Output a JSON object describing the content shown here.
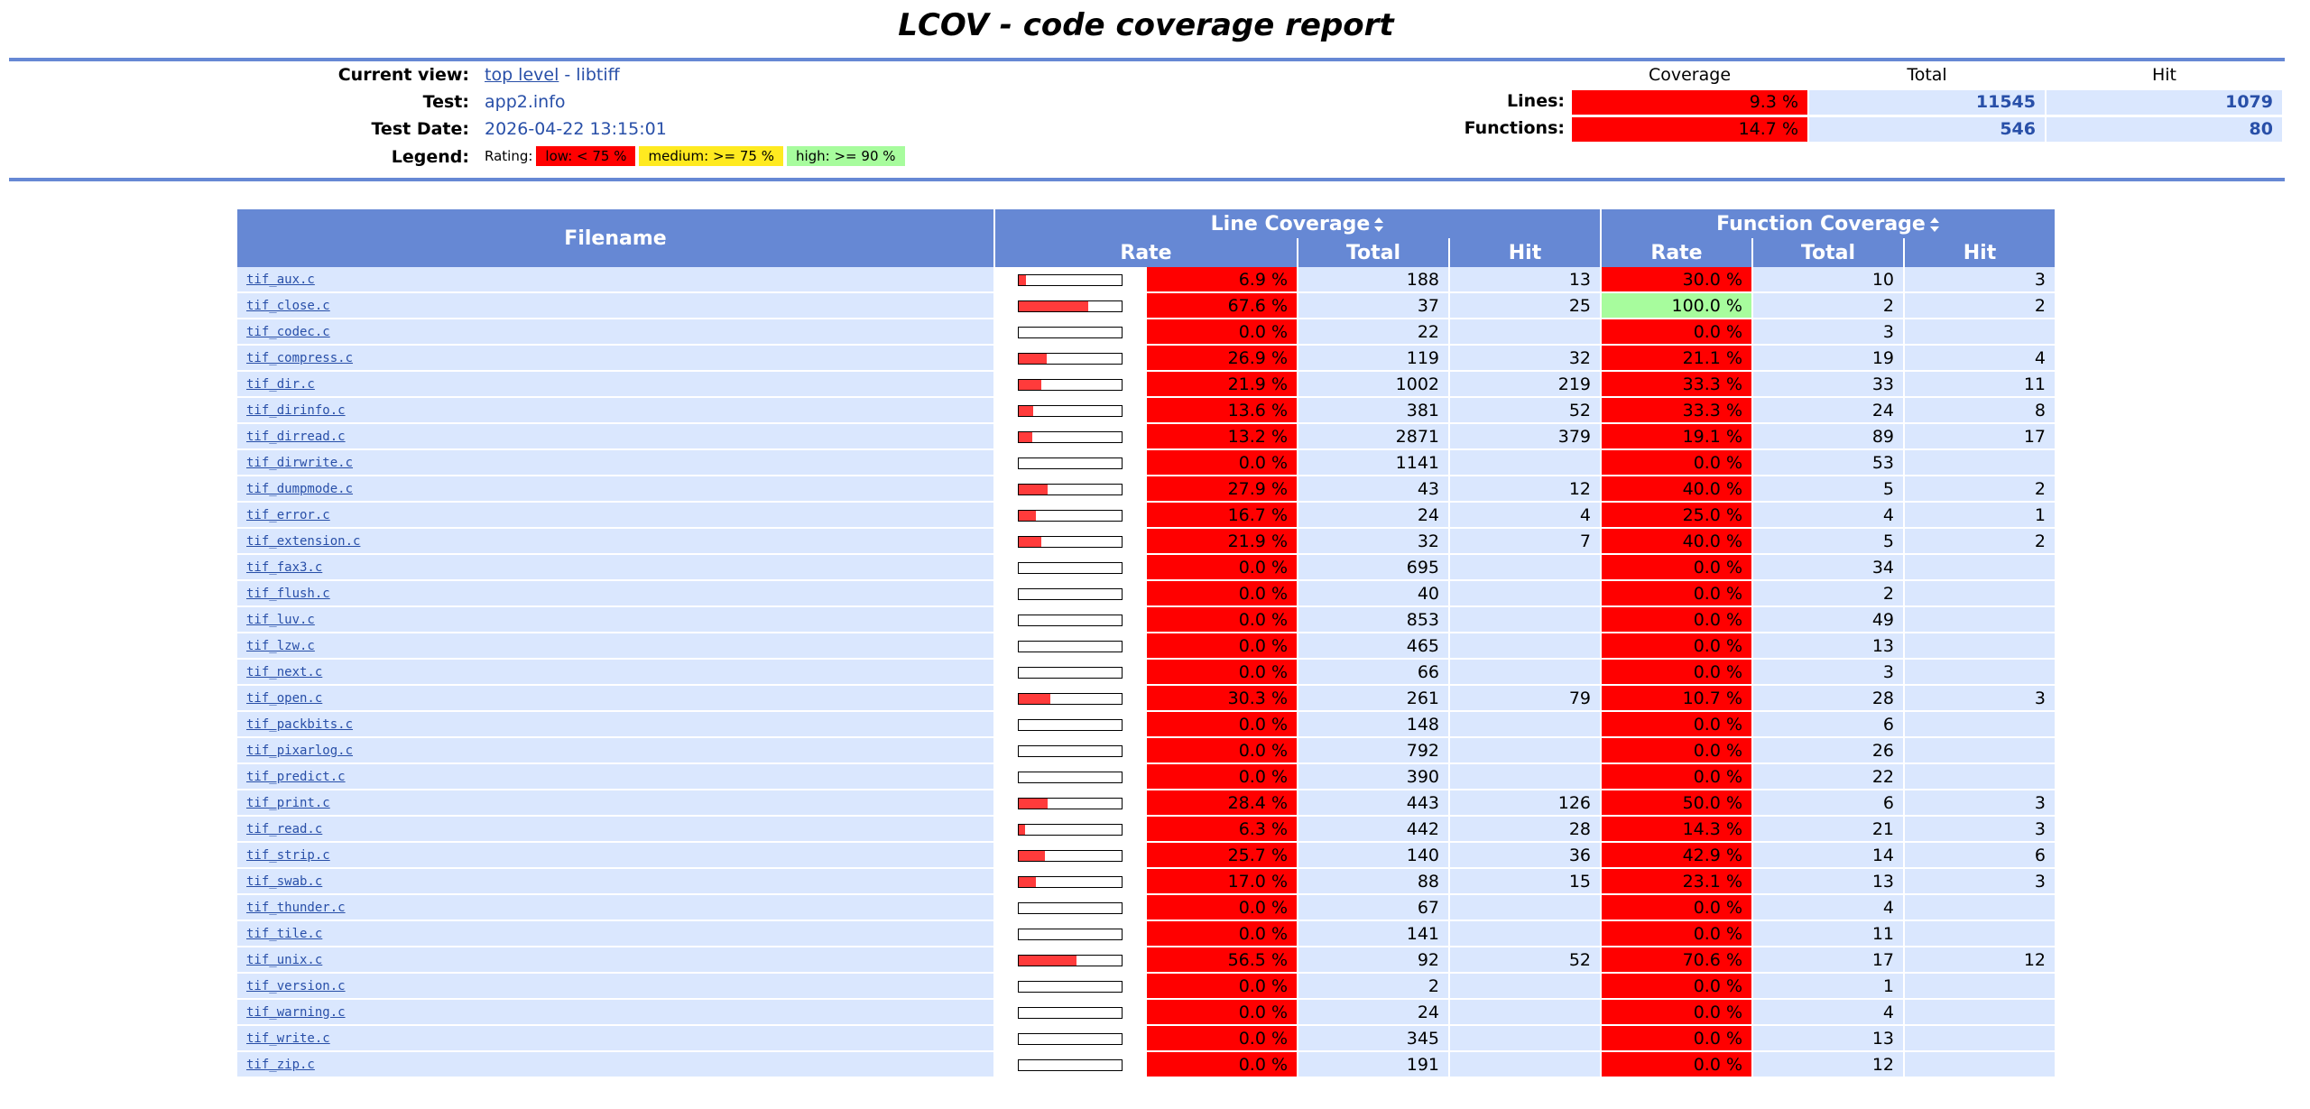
{
  "header": {
    "title": "LCOV - code coverage report",
    "labels": {
      "current_view": "Current view:",
      "test": "Test:",
      "test_date": "Test Date:",
      "legend": "Legend:"
    },
    "current_view": {
      "link": "top level",
      "separator": " - ",
      "name": "libtiff"
    },
    "test": "app2.info",
    "test_date": "2026-04-22 13:15:01",
    "legend": {
      "prefix": "Rating:",
      "items": [
        {
          "label": "low: < 75 %",
          "color": "#ff0000"
        },
        {
          "label": "medium: >= 75 %",
          "color": "#ffea20"
        },
        {
          "label": "high: >= 90 %",
          "color": "#a7fc9d"
        }
      ]
    }
  },
  "summary": {
    "columns": [
      "Coverage",
      "Total",
      "Hit"
    ],
    "rows": [
      {
        "label": "Lines:",
        "coverage": {
          "value": 9.3,
          "label": "9.3 %",
          "color": "#ff0000"
        },
        "total": 11545,
        "hit": 1079
      },
      {
        "label": "Functions:",
        "coverage": {
          "value": 14.7,
          "label": "14.7 %",
          "color": "#ff0000"
        },
        "total": 546,
        "hit": 80
      }
    ]
  },
  "table": {
    "headers": {
      "filename": "Filename",
      "line_coverage": "Line Coverage",
      "function_coverage": "Function Coverage",
      "rate": "Rate",
      "total": "Total",
      "hit": "Hit"
    },
    "rows": [
      {
        "file": "tif_aux.c",
        "line_rate": {
          "value": 6.9,
          "label": "6.9 %",
          "color": "#ff0000"
        },
        "line_total": 188,
        "line_hit": 13,
        "func_rate": {
          "value": 30.0,
          "label": "30.0 %",
          "color": "#ff0000"
        },
        "func_total": 10,
        "func_hit": 3
      },
      {
        "file": "tif_close.c",
        "line_rate": {
          "value": 67.6,
          "label": "67.6 %",
          "color": "#ff0000"
        },
        "line_total": 37,
        "line_hit": 25,
        "func_rate": {
          "value": 100.0,
          "label": "100.0 %",
          "color": "#a7fc9d"
        },
        "func_total": 2,
        "func_hit": 2
      },
      {
        "file": "tif_codec.c",
        "line_rate": {
          "value": 0.0,
          "label": "0.0 %",
          "color": "#ff0000"
        },
        "line_total": 22,
        "line_hit": null,
        "func_rate": {
          "value": 0.0,
          "label": "0.0 %",
          "color": "#ff0000"
        },
        "func_total": 3,
        "func_hit": null
      },
      {
        "file": "tif_compress.c",
        "line_rate": {
          "value": 26.9,
          "label": "26.9 %",
          "color": "#ff0000"
        },
        "line_total": 119,
        "line_hit": 32,
        "func_rate": {
          "value": 21.1,
          "label": "21.1 %",
          "color": "#ff0000"
        },
        "func_total": 19,
        "func_hit": 4
      },
      {
        "file": "tif_dir.c",
        "line_rate": {
          "value": 21.9,
          "label": "21.9 %",
          "color": "#ff0000"
        },
        "line_total": 1002,
        "line_hit": 219,
        "func_rate": {
          "value": 33.3,
          "label": "33.3 %",
          "color": "#ff0000"
        },
        "func_total": 33,
        "func_hit": 11
      },
      {
        "file": "tif_dirinfo.c",
        "line_rate": {
          "value": 13.6,
          "label": "13.6 %",
          "color": "#ff0000"
        },
        "line_total": 381,
        "line_hit": 52,
        "func_rate": {
          "value": 33.3,
          "label": "33.3 %",
          "color": "#ff0000"
        },
        "func_total": 24,
        "func_hit": 8
      },
      {
        "file": "tif_dirread.c",
        "line_rate": {
          "value": 13.2,
          "label": "13.2 %",
          "color": "#ff0000"
        },
        "line_total": 2871,
        "line_hit": 379,
        "func_rate": {
          "value": 19.1,
          "label": "19.1 %",
          "color": "#ff0000"
        },
        "func_total": 89,
        "func_hit": 17
      },
      {
        "file": "tif_dirwrite.c",
        "line_rate": {
          "value": 0.0,
          "label": "0.0 %",
          "color": "#ff0000"
        },
        "line_total": 1141,
        "line_hit": null,
        "func_rate": {
          "value": 0.0,
          "label": "0.0 %",
          "color": "#ff0000"
        },
        "func_total": 53,
        "func_hit": null
      },
      {
        "file": "tif_dumpmode.c",
        "line_rate": {
          "value": 27.9,
          "label": "27.9 %",
          "color": "#ff0000"
        },
        "line_total": 43,
        "line_hit": 12,
        "func_rate": {
          "value": 40.0,
          "label": "40.0 %",
          "color": "#ff0000"
        },
        "func_total": 5,
        "func_hit": 2
      },
      {
        "file": "tif_error.c",
        "line_rate": {
          "value": 16.7,
          "label": "16.7 %",
          "color": "#ff0000"
        },
        "line_total": 24,
        "line_hit": 4,
        "func_rate": {
          "value": 25.0,
          "label": "25.0 %",
          "color": "#ff0000"
        },
        "func_total": 4,
        "func_hit": 1
      },
      {
        "file": "tif_extension.c",
        "line_rate": {
          "value": 21.9,
          "label": "21.9 %",
          "color": "#ff0000"
        },
        "line_total": 32,
        "line_hit": 7,
        "func_rate": {
          "value": 40.0,
          "label": "40.0 %",
          "color": "#ff0000"
        },
        "func_total": 5,
        "func_hit": 2
      },
      {
        "file": "tif_fax3.c",
        "line_rate": {
          "value": 0.0,
          "label": "0.0 %",
          "color": "#ff0000"
        },
        "line_total": 695,
        "line_hit": null,
        "func_rate": {
          "value": 0.0,
          "label": "0.0 %",
          "color": "#ff0000"
        },
        "func_total": 34,
        "func_hit": null
      },
      {
        "file": "tif_flush.c",
        "line_rate": {
          "value": 0.0,
          "label": "0.0 %",
          "color": "#ff0000"
        },
        "line_total": 40,
        "line_hit": null,
        "func_rate": {
          "value": 0.0,
          "label": "0.0 %",
          "color": "#ff0000"
        },
        "func_total": 2,
        "func_hit": null
      },
      {
        "file": "tif_luv.c",
        "line_rate": {
          "value": 0.0,
          "label": "0.0 %",
          "color": "#ff0000"
        },
        "line_total": 853,
        "line_hit": null,
        "func_rate": {
          "value": 0.0,
          "label": "0.0 %",
          "color": "#ff0000"
        },
        "func_total": 49,
        "func_hit": null
      },
      {
        "file": "tif_lzw.c",
        "line_rate": {
          "value": 0.0,
          "label": "0.0 %",
          "color": "#ff0000"
        },
        "line_total": 465,
        "line_hit": null,
        "func_rate": {
          "value": 0.0,
          "label": "0.0 %",
          "color": "#ff0000"
        },
        "func_total": 13,
        "func_hit": null
      },
      {
        "file": "tif_next.c",
        "line_rate": {
          "value": 0.0,
          "label": "0.0 %",
          "color": "#ff0000"
        },
        "line_total": 66,
        "line_hit": null,
        "func_rate": {
          "value": 0.0,
          "label": "0.0 %",
          "color": "#ff0000"
        },
        "func_total": 3,
        "func_hit": null
      },
      {
        "file": "tif_open.c",
        "line_rate": {
          "value": 30.3,
          "label": "30.3 %",
          "color": "#ff0000"
        },
        "line_total": 261,
        "line_hit": 79,
        "func_rate": {
          "value": 10.7,
          "label": "10.7 %",
          "color": "#ff0000"
        },
        "func_total": 28,
        "func_hit": 3
      },
      {
        "file": "tif_packbits.c",
        "line_rate": {
          "value": 0.0,
          "label": "0.0 %",
          "color": "#ff0000"
        },
        "line_total": 148,
        "line_hit": null,
        "func_rate": {
          "value": 0.0,
          "label": "0.0 %",
          "color": "#ff0000"
        },
        "func_total": 6,
        "func_hit": null
      },
      {
        "file": "tif_pixarlog.c",
        "line_rate": {
          "value": 0.0,
          "label": "0.0 %",
          "color": "#ff0000"
        },
        "line_total": 792,
        "line_hit": null,
        "func_rate": {
          "value": 0.0,
          "label": "0.0 %",
          "color": "#ff0000"
        },
        "func_total": 26,
        "func_hit": null
      },
      {
        "file": "tif_predict.c",
        "line_rate": {
          "value": 0.0,
          "label": "0.0 %",
          "color": "#ff0000"
        },
        "line_total": 390,
        "line_hit": null,
        "func_rate": {
          "value": 0.0,
          "label": "0.0 %",
          "color": "#ff0000"
        },
        "func_total": 22,
        "func_hit": null
      },
      {
        "file": "tif_print.c",
        "line_rate": {
          "value": 28.4,
          "label": "28.4 %",
          "color": "#ff0000"
        },
        "line_total": 443,
        "line_hit": 126,
        "func_rate": {
          "value": 50.0,
          "label": "50.0 %",
          "color": "#ff0000"
        },
        "func_total": 6,
        "func_hit": 3
      },
      {
        "file": "tif_read.c",
        "line_rate": {
          "value": 6.3,
          "label": "6.3 %",
          "color": "#ff0000"
        },
        "line_total": 442,
        "line_hit": 28,
        "func_rate": {
          "value": 14.3,
          "label": "14.3 %",
          "color": "#ff0000"
        },
        "func_total": 21,
        "func_hit": 3
      },
      {
        "file": "tif_strip.c",
        "line_rate": {
          "value": 25.7,
          "label": "25.7 %",
          "color": "#ff0000"
        },
        "line_total": 140,
        "line_hit": 36,
        "func_rate": {
          "value": 42.9,
          "label": "42.9 %",
          "color": "#ff0000"
        },
        "func_total": 14,
        "func_hit": 6
      },
      {
        "file": "tif_swab.c",
        "line_rate": {
          "value": 17.0,
          "label": "17.0 %",
          "color": "#ff0000"
        },
        "line_total": 88,
        "line_hit": 15,
        "func_rate": {
          "value": 23.1,
          "label": "23.1 %",
          "color": "#ff0000"
        },
        "func_total": 13,
        "func_hit": 3
      },
      {
        "file": "tif_thunder.c",
        "line_rate": {
          "value": 0.0,
          "label": "0.0 %",
          "color": "#ff0000"
        },
        "line_total": 67,
        "line_hit": null,
        "func_rate": {
          "value": 0.0,
          "label": "0.0 %",
          "color": "#ff0000"
        },
        "func_total": 4,
        "func_hit": null
      },
      {
        "file": "tif_tile.c",
        "line_rate": {
          "value": 0.0,
          "label": "0.0 %",
          "color": "#ff0000"
        },
        "line_total": 141,
        "line_hit": null,
        "func_rate": {
          "value": 0.0,
          "label": "0.0 %",
          "color": "#ff0000"
        },
        "func_total": 11,
        "func_hit": null
      },
      {
        "file": "tif_unix.c",
        "line_rate": {
          "value": 56.5,
          "label": "56.5 %",
          "color": "#ff0000"
        },
        "line_total": 92,
        "line_hit": 52,
        "func_rate": {
          "value": 70.6,
          "label": "70.6 %",
          "color": "#ff0000"
        },
        "func_total": 17,
        "func_hit": 12
      },
      {
        "file": "tif_version.c",
        "line_rate": {
          "value": 0.0,
          "label": "0.0 %",
          "color": "#ff0000"
        },
        "line_total": 2,
        "line_hit": null,
        "func_rate": {
          "value": 0.0,
          "label": "0.0 %",
          "color": "#ff0000"
        },
        "func_total": 1,
        "func_hit": null
      },
      {
        "file": "tif_warning.c",
        "line_rate": {
          "value": 0.0,
          "label": "0.0 %",
          "color": "#ff0000"
        },
        "line_total": 24,
        "line_hit": null,
        "func_rate": {
          "value": 0.0,
          "label": "0.0 %",
          "color": "#ff0000"
        },
        "func_total": 4,
        "func_hit": null
      },
      {
        "file": "tif_write.c",
        "line_rate": {
          "value": 0.0,
          "label": "0.0 %",
          "color": "#ff0000"
        },
        "line_total": 345,
        "line_hit": null,
        "func_rate": {
          "value": 0.0,
          "label": "0.0 %",
          "color": "#ff0000"
        },
        "func_total": 13,
        "func_hit": null
      },
      {
        "file": "tif_zip.c",
        "line_rate": {
          "value": 0.0,
          "label": "0.0 %",
          "color": "#ff0000"
        },
        "line_total": 191,
        "line_hit": null,
        "func_rate": {
          "value": 0.0,
          "label": "0.0 %",
          "color": "#ff0000"
        },
        "func_total": 12,
        "func_hit": null
      }
    ]
  }
}
